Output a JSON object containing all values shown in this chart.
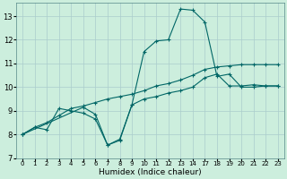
{
  "xlabel": "Humidex (Indice chaleur)",
  "bg_color": "#cceedd",
  "line_color": "#006666",
  "grid_color": "#aacccc",
  "ylim": [
    7,
    13.55
  ],
  "yticks": [
    7,
    8,
    9,
    10,
    11,
    12,
    13
  ],
  "xlabels": [
    "0",
    "1",
    "2",
    "3",
    "4",
    "5",
    "6",
    "7",
    "8",
    "9",
    "10",
    "11",
    "12",
    "13",
    "14",
    "17",
    "18",
    "19",
    "20",
    "21",
    "22",
    "23"
  ],
  "curve1_y": [
    8.0,
    8.3,
    8.2,
    9.1,
    9.0,
    8.9,
    8.65,
    7.55,
    7.8,
    9.25,
    9.5,
    9.6,
    9.75,
    9.85,
    10.0,
    10.4,
    10.55,
    10.05,
    10.05,
    10.1,
    10.05,
    10.05
  ],
  "curve2_x_idx": [
    0,
    5,
    6,
    7,
    8,
    9,
    10,
    11,
    12,
    13,
    14,
    15,
    16,
    17,
    18,
    19,
    20,
    21
  ],
  "curve2_y": [
    8.0,
    9.15,
    8.85,
    7.55,
    7.75,
    9.25,
    11.5,
    11.95,
    12.0,
    13.3,
    13.25,
    12.75,
    10.45,
    10.55,
    10.0,
    10.0,
    10.05,
    10.05
  ],
  "curve3_y": [
    8.0,
    8.3,
    8.5,
    8.8,
    9.1,
    9.2,
    9.35,
    9.5,
    9.6,
    9.7,
    9.85,
    10.05,
    10.15,
    10.3,
    10.5,
    10.75,
    10.85,
    10.9,
    10.95,
    10.95,
    10.95,
    10.95
  ]
}
